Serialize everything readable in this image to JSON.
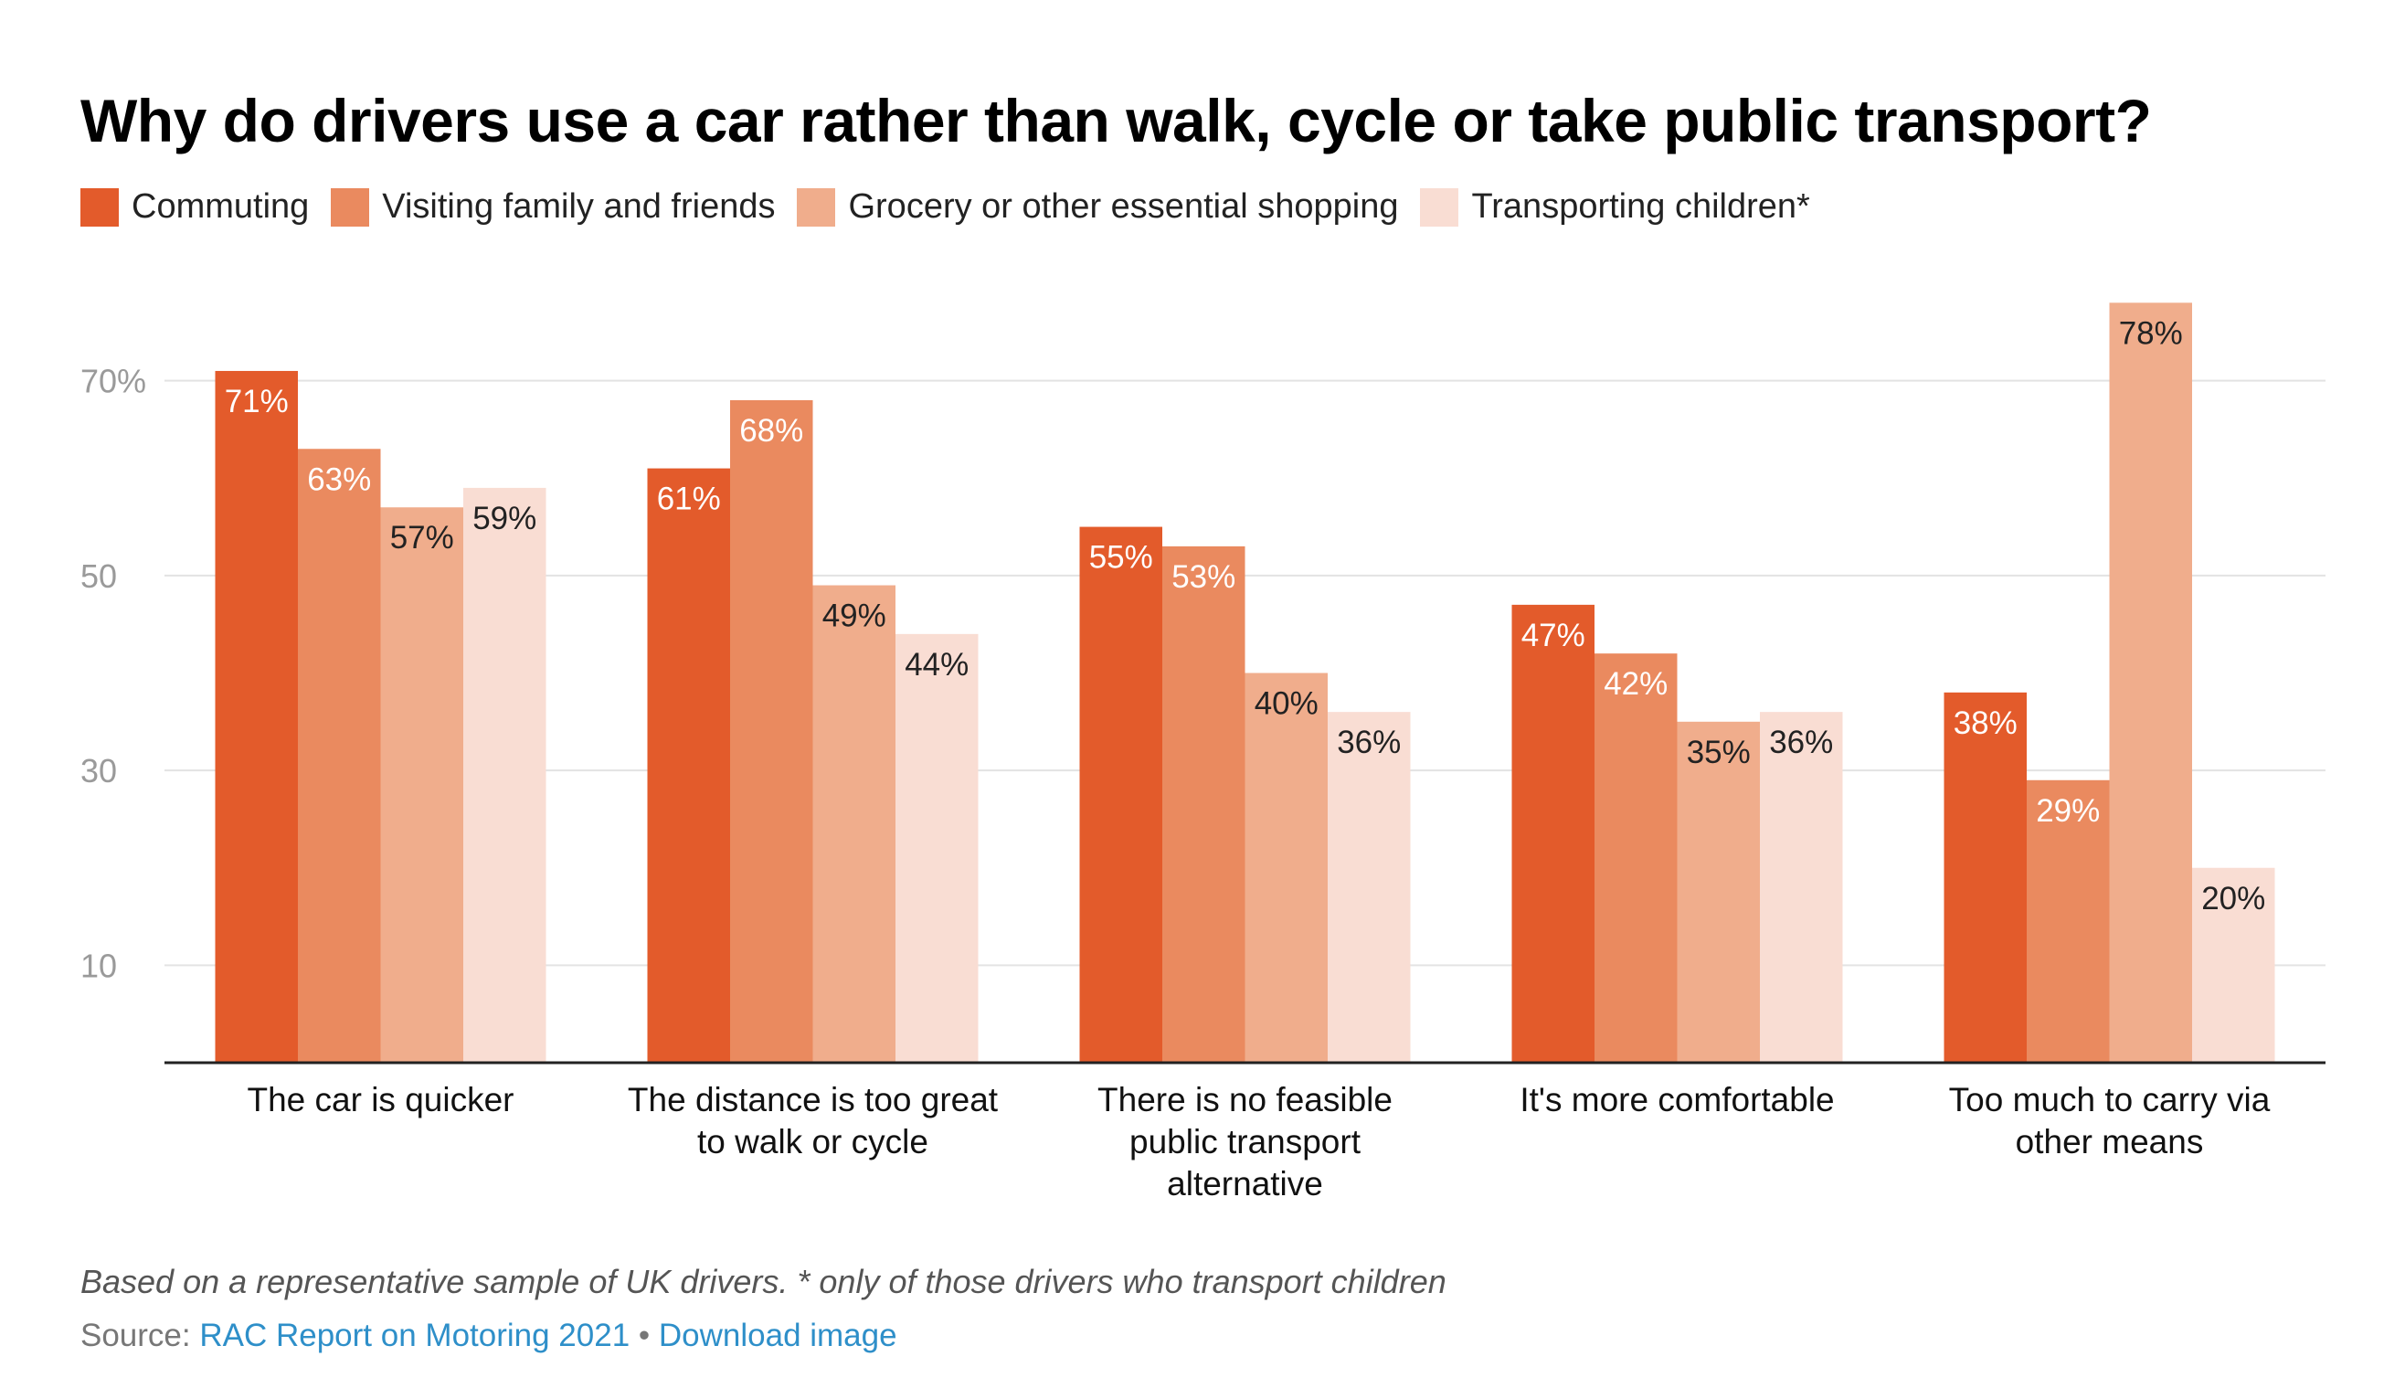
{
  "title": "Why do drivers use a car rather than walk, cycle or take public transport?",
  "legend": [
    {
      "label": "Commuting",
      "color": "#e35b2b"
    },
    {
      "label": "Visiting family and friends",
      "color": "#ea8a5f"
    },
    {
      "label": "Grocery or other essential shopping",
      "color": "#f0ad8c"
    },
    {
      "label": "Transporting children*",
      "color": "#f9ddd3"
    }
  ],
  "note": "Based on a representative sample of UK drivers. * only of those drivers who transport children",
  "source": {
    "prefix": "Source: ",
    "link1": "RAC Report on Motoring 2021",
    "separator": " • ",
    "link2": "Download image"
  },
  "chart_data": {
    "type": "bar",
    "categories": [
      [
        "The car is quicker"
      ],
      [
        "The distance is too great",
        "to walk or cycle"
      ],
      [
        "There is no feasible",
        "public transport",
        "alternative"
      ],
      [
        "It's more comfortable"
      ],
      [
        "Too much to carry via",
        "other means"
      ]
    ],
    "series": [
      {
        "name": "Commuting",
        "values": [
          71,
          61,
          55,
          47,
          38
        ],
        "color": "#e35b2b"
      },
      {
        "name": "Visiting family and friends",
        "values": [
          63,
          68,
          53,
          42,
          29
        ],
        "color": "#ea8a5f"
      },
      {
        "name": "Grocery or other essential shopping",
        "values": [
          57,
          49,
          40,
          35,
          78
        ],
        "color": "#f0ad8c"
      },
      {
        "name": "Transporting children*",
        "values": [
          59,
          44,
          36,
          36,
          20
        ],
        "color": "#f9ddd3"
      }
    ],
    "data_labels": [
      [
        "71%",
        "61%",
        "55%",
        "47%",
        "38%"
      ],
      [
        "63%",
        "68%",
        "53%",
        "42%",
        "29%"
      ],
      [
        "57%",
        "49%",
        "40%",
        "35%",
        "78%"
      ],
      [
        "59%",
        "44%",
        "36%",
        "36%",
        "20%"
      ]
    ],
    "yticks": [
      10,
      30,
      50,
      70
    ],
    "ytick_labels": [
      "10",
      "30",
      "50",
      "70%"
    ],
    "ylim": [
      0,
      80
    ],
    "grid": true,
    "legend_position": "top-left",
    "xlabel": "",
    "ylabel": ""
  }
}
